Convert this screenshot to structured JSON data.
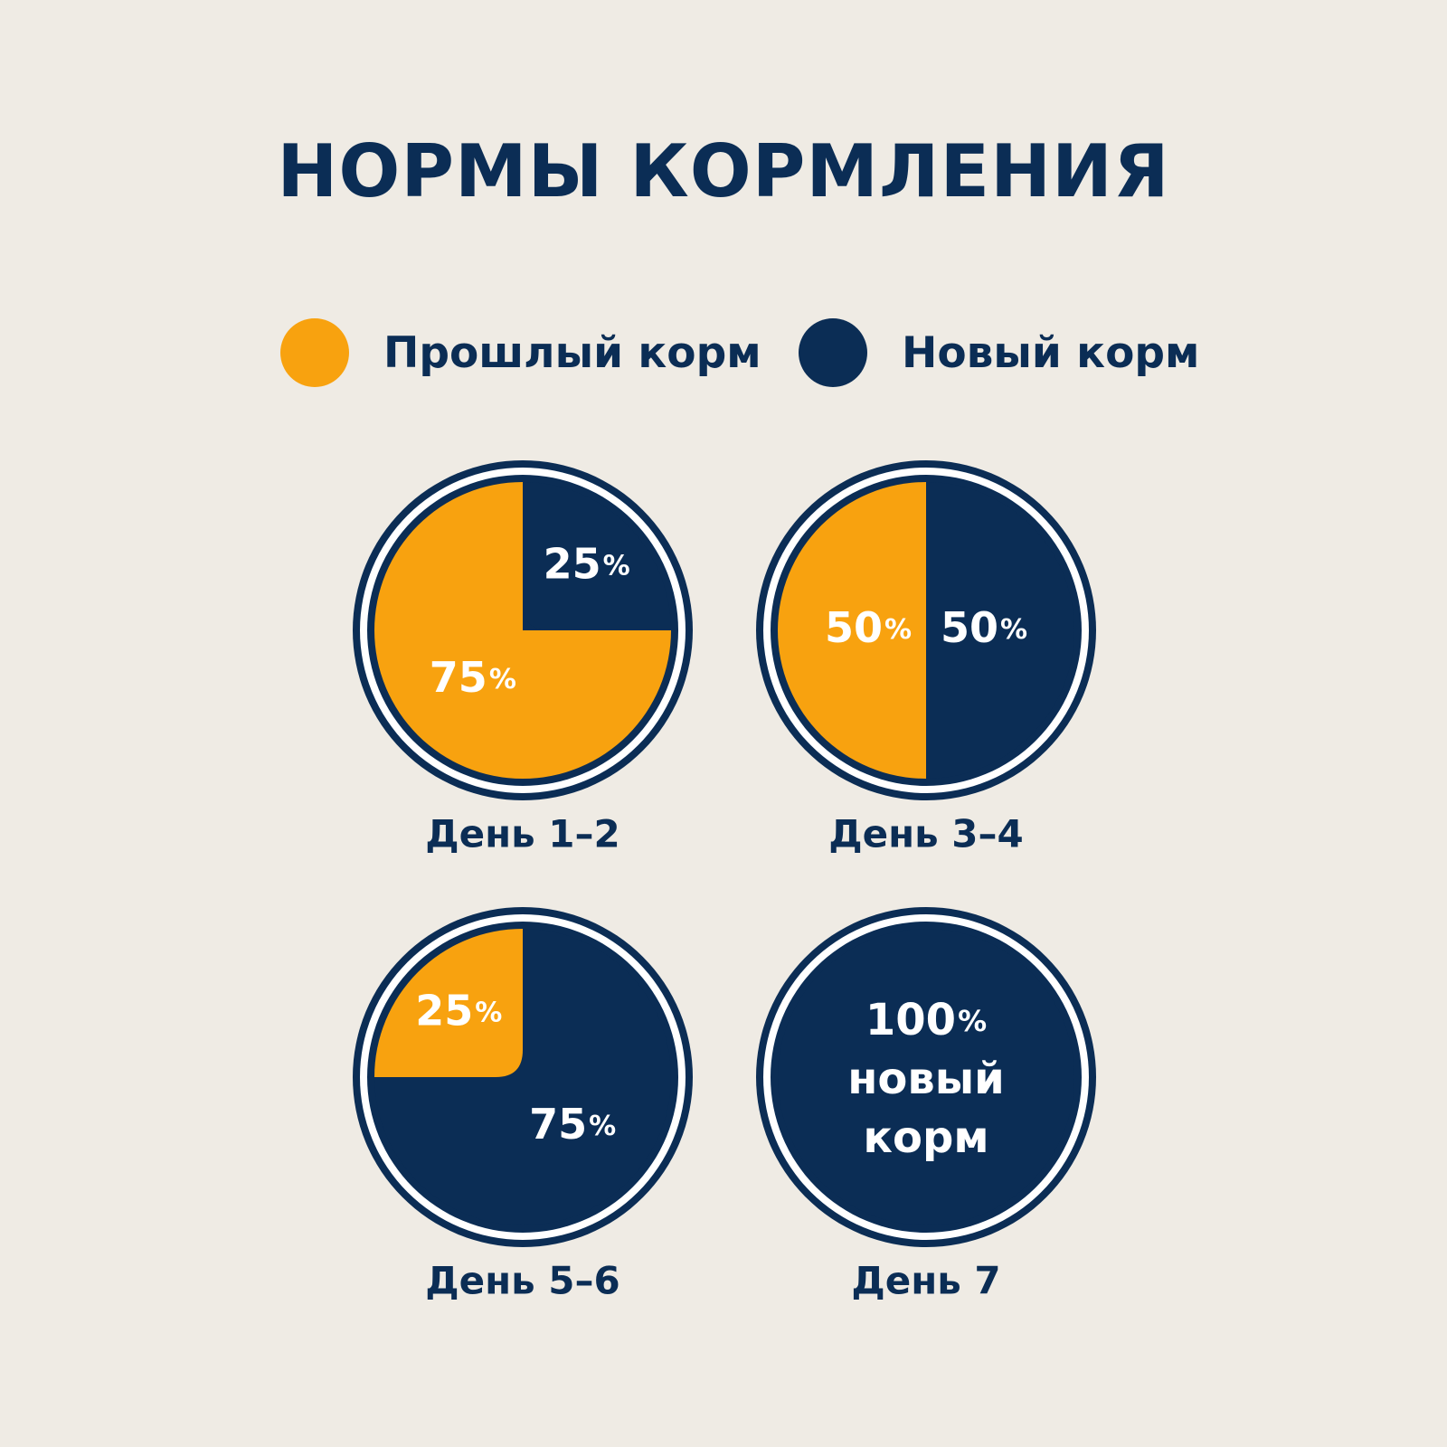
{
  "colors": {
    "background": "#efebe4",
    "old_food": "#f8a20f",
    "new_food": "#0b2d55",
    "ring_gap": "#ffffff"
  },
  "title": "НОРМЫ КОРМЛЕНИЯ",
  "legend": [
    {
      "label": "Прошлый корм",
      "color": "#f8a20f"
    },
    {
      "label": "Новый корм",
      "color": "#0b2d55"
    }
  ],
  "chart_data": [
    {
      "type": "pie",
      "label": "День 1–2",
      "slices": [
        {
          "series": "Прошлый корм",
          "value": 75,
          "text": "75%"
        },
        {
          "series": "Новый корм",
          "value": 25,
          "text": "25%"
        }
      ]
    },
    {
      "type": "pie",
      "label": "День 3–4",
      "slices": [
        {
          "series": "Прошлый корм",
          "value": 50,
          "text": "50%"
        },
        {
          "series": "Новый корм",
          "value": 50,
          "text": "50%"
        }
      ]
    },
    {
      "type": "pie",
      "label": "День 5–6",
      "slices": [
        {
          "series": "Прошлый корм",
          "value": 25,
          "text": "25%"
        },
        {
          "series": "Новый корм",
          "value": 75,
          "text": "75%"
        }
      ]
    },
    {
      "type": "pie",
      "label": "День 7",
      "slices": [
        {
          "series": "Прошлый корм",
          "value": 0,
          "text": ""
        },
        {
          "series": "Новый корм",
          "value": 100,
          "text": "100%"
        }
      ],
      "caption_lines": [
        "новый",
        "корм"
      ]
    }
  ]
}
